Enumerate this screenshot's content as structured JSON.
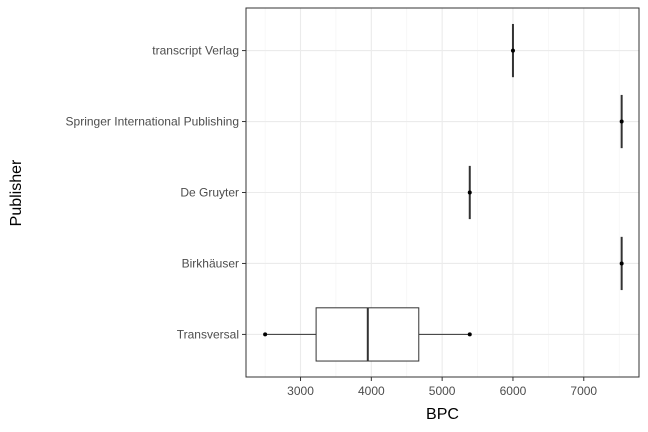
{
  "chart_data": {
    "type": "boxplot",
    "orientation": "horizontal",
    "title": "",
    "xlabel": "BPC",
    "ylabel": "Publisher",
    "xlim": [
      2230,
      7780
    ],
    "x_ticks": [
      3000,
      4000,
      5000,
      6000,
      7000
    ],
    "x_minor_ticks": [
      2500,
      3500,
      4500,
      5500,
      6500,
      7500
    ],
    "grid": true,
    "categories": [
      "Transversal",
      "Birkhäuser",
      "De Gruyter",
      "Springer International Publishing",
      "transcript Verlag"
    ],
    "boxes": [
      {
        "category": "Transversal",
        "min": 2500,
        "q1": 3220,
        "median": 3950,
        "q3": 4670,
        "max": 5390
      },
      {
        "category": "Birkhäuser",
        "min": 7535,
        "q1": 7535,
        "median": 7535,
        "q3": 7535,
        "max": 7535
      },
      {
        "category": "De Gruyter",
        "min": 5390,
        "q1": 5390,
        "median": 5390,
        "q3": 5390,
        "max": 5390
      },
      {
        "category": "Springer International Publishing",
        "min": 7535,
        "q1": 7535,
        "median": 7535,
        "q3": 7535,
        "max": 7535
      },
      {
        "category": "transcript Verlag",
        "min": 6000,
        "q1": 6000,
        "median": 6000,
        "q3": 6000,
        "max": 6000
      }
    ],
    "colors": {
      "box_fill": "#ffffff",
      "box_line": "#333333",
      "point": "#000000",
      "grid": "#ebebeb"
    }
  }
}
